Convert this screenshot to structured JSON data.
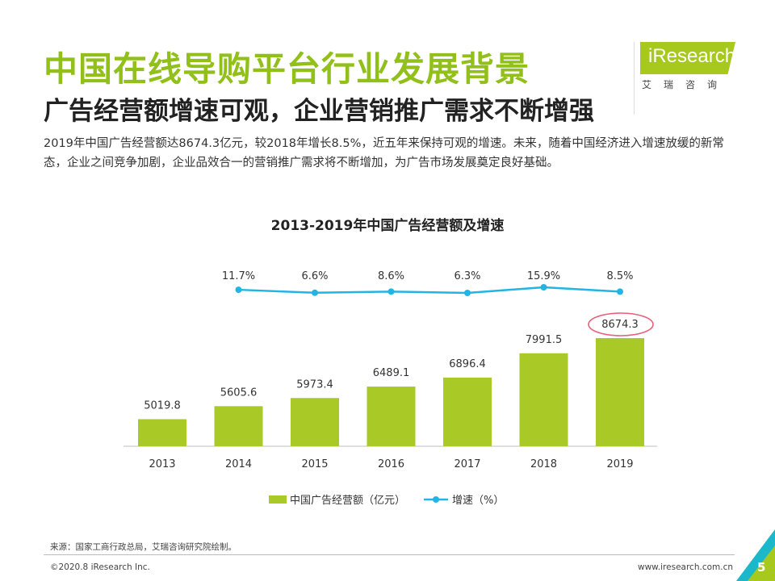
{
  "header": {
    "title": "中国在线导购平台行业发展背景",
    "subtitle": "广告经营额增速可观，企业营销推广需求不断增强",
    "description": "2019年中国广告经营额达8674.3亿元，较2018年增长8.5%，近五年来保持可观的增速。未来，随着中国经济进入增速放缓的新常态，企业之间竞争加剧，企业品效合一的营销推广需求将不断增加，为广告市场发展奠定良好基础。"
  },
  "logo": {
    "brand": "iResearch",
    "tagline": "艾瑞咨询"
  },
  "colors": {
    "accent": "#92c01a",
    "bar": "#a9c926",
    "line": "#22b4e4",
    "highlight": "#e8607a"
  },
  "chart_data": {
    "type": "bar",
    "title": "2013-2019年中国广告经营额及增速",
    "categories": [
      "2013",
      "2014",
      "2015",
      "2016",
      "2017",
      "2018",
      "2019"
    ],
    "series": [
      {
        "name": "中国广告经营额（亿元）",
        "type": "bar",
        "values": [
          5019.8,
          5605.6,
          5973.4,
          6489.1,
          6896.4,
          7991.5,
          8674.3
        ],
        "labels": [
          "5019.8",
          "5605.6",
          "5973.4",
          "6489.1",
          "6896.4",
          "7991.5",
          "8674.3"
        ]
      },
      {
        "name": "增速（%）",
        "type": "line",
        "values": [
          11.7,
          6.6,
          8.6,
          6.3,
          15.9,
          8.5
        ],
        "x": [
          "2014",
          "2015",
          "2016",
          "2017",
          "2018",
          "2019"
        ],
        "labels": [
          "11.7%",
          "6.6%",
          "8.6%",
          "6.3%",
          "15.9%",
          "8.5%"
        ]
      }
    ],
    "highlighted_category": "2019",
    "legend_position": "bottom"
  },
  "footer": {
    "source": "来源：国家工商行政总局，艾瑞咨询研究院绘制。",
    "copyright": "©2020.8 iResearch Inc.",
    "url": "www.iresearch.com.cn",
    "page_number": "5"
  }
}
